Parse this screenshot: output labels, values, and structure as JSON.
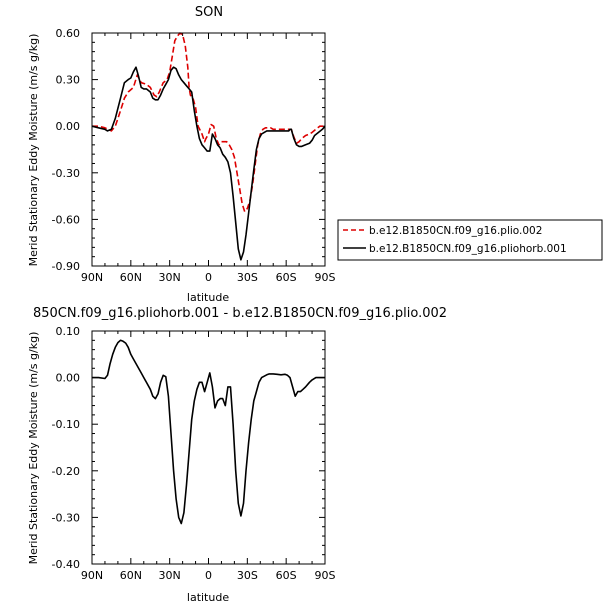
{
  "chart_data": [
    {
      "type": "line",
      "title": "SON",
      "xlabel": "latitude",
      "ylabel": "Merid Stationary Eddy Moisture (m/s g/kg)",
      "x_ticks": [
        -90,
        -60,
        -30,
        0,
        30,
        60,
        90
      ],
      "x_tick_labels": [
        "90N",
        "60N",
        "30N",
        "0",
        "30S",
        "60S",
        "90S"
      ],
      "xlim": [
        -90,
        90
      ],
      "y_ticks": [
        -0.9,
        -0.6,
        -0.3,
        0.0,
        0.3,
        0.6
      ],
      "y_tick_labels": [
        "-0.90",
        "-0.60",
        "-0.30",
        "0.00",
        "0.30",
        "0.60"
      ],
      "ylim": [
        -0.9,
        0.6
      ],
      "grid": false,
      "legend_position": "right",
      "series": [
        {
          "name": "b.e12.B1850CN.f09_g16.plio.002",
          "color": "#dd0000",
          "dash": "dashed",
          "x": [
            -90,
            -85,
            -80,
            -75,
            -72,
            -68,
            -65,
            -62,
            -58,
            -55,
            -52,
            -48,
            -45,
            -42,
            -40,
            -38,
            -35,
            -32,
            -30,
            -28,
            -26,
            -24,
            -22,
            -20,
            -18,
            -16,
            -15,
            -14,
            -12,
            -10,
            -8,
            -5,
            -3,
            -2,
            0,
            2,
            4,
            6,
            8,
            10,
            12,
            14,
            16,
            18,
            20,
            22,
            24,
            26,
            28,
            30,
            32,
            34,
            36,
            38,
            40,
            42,
            44,
            46,
            48,
            50,
            52,
            55,
            58,
            60,
            62,
            64,
            66,
            68,
            70,
            72,
            75,
            78,
            80,
            83,
            86,
            90
          ],
          "y": [
            0,
            0,
            -0.01,
            -0.03,
            0,
            0.1,
            0.18,
            0.22,
            0.25,
            0.33,
            0.28,
            0.27,
            0.25,
            0.2,
            0.19,
            0.22,
            0.28,
            0.3,
            0.35,
            0.45,
            0.55,
            0.58,
            0.6,
            0.59,
            0.52,
            0.38,
            0.25,
            0.2,
            0.18,
            0.12,
            0,
            -0.05,
            -0.1,
            -0.08,
            -0.05,
            0.01,
            0,
            -0.08,
            -0.12,
            -0.1,
            -0.1,
            -0.1,
            -0.12,
            -0.15,
            -0.2,
            -0.3,
            -0.4,
            -0.5,
            -0.55,
            -0.53,
            -0.48,
            -0.38,
            -0.25,
            -0.12,
            -0.05,
            -0.02,
            -0.01,
            -0.01,
            -0.01,
            -0.02,
            -0.02,
            -0.02,
            -0.02,
            -0.02,
            -0.02,
            -0.02,
            -0.07,
            -0.11,
            -0.1,
            -0.08,
            -0.06,
            -0.05,
            -0.04,
            -0.02,
            0,
            0
          ]
        },
        {
          "name": "b.e12.B1850CN.f09_g16.pliohorb.001",
          "color": "#000000",
          "dash": "solid",
          "x": [
            -90,
            -85,
            -80,
            -78,
            -75,
            -72,
            -68,
            -65,
            -62,
            -60,
            -58,
            -56,
            -54,
            -52,
            -50,
            -48,
            -45,
            -43,
            -41,
            -39,
            -37,
            -35,
            -33,
            -31,
            -29,
            -27,
            -25,
            -23,
            -21,
            -19,
            -17,
            -15,
            -13,
            -11,
            -9,
            -7,
            -5,
            -3,
            -1,
            1,
            3,
            5,
            7,
            9,
            11,
            13,
            15,
            17,
            19,
            21,
            23,
            25,
            27,
            29,
            31,
            33,
            35,
            37,
            39,
            41,
            43,
            45,
            47,
            50,
            55,
            60,
            62,
            63,
            64,
            65,
            66,
            68,
            70,
            72,
            75,
            78,
            80,
            82,
            85,
            88,
            90
          ],
          "y": [
            0,
            -0.01,
            -0.02,
            -0.03,
            -0.02,
            0.05,
            0.18,
            0.28,
            0.3,
            0.31,
            0.35,
            0.38,
            0.32,
            0.25,
            0.24,
            0.24,
            0.22,
            0.18,
            0.17,
            0.17,
            0.2,
            0.24,
            0.27,
            0.3,
            0.36,
            0.38,
            0.37,
            0.33,
            0.3,
            0.28,
            0.26,
            0.24,
            0.22,
            0.1,
            0,
            -0.08,
            -0.12,
            -0.14,
            -0.16,
            -0.16,
            -0.05,
            -0.08,
            -0.12,
            -0.14,
            -0.18,
            -0.2,
            -0.23,
            -0.3,
            -0.45,
            -0.62,
            -0.79,
            -0.86,
            -0.81,
            -0.7,
            -0.56,
            -0.42,
            -0.28,
            -0.15,
            -0.08,
            -0.05,
            -0.04,
            -0.03,
            -0.03,
            -0.03,
            -0.03,
            -0.03,
            -0.03,
            -0.02,
            -0.02,
            -0.05,
            -0.08,
            -0.12,
            -0.13,
            -0.13,
            -0.12,
            -0.11,
            -0.09,
            -0.06,
            -0.04,
            -0.02,
            0
          ]
        }
      ]
    },
    {
      "type": "line",
      "title": "850CN.f09_g16.pliohorb.001 - b.e12.B1850CN.f09_g16.plio.002",
      "xlabel": "latitude",
      "ylabel": "Merid Stationary Eddy Moisture (m/s g/kg)",
      "x_ticks": [
        -90,
        -60,
        -30,
        0,
        30,
        60,
        90
      ],
      "x_tick_labels": [
        "90N",
        "60N",
        "30N",
        "0",
        "30S",
        "60S",
        "90S"
      ],
      "xlim": [
        -90,
        90
      ],
      "y_ticks": [
        -0.4,
        -0.3,
        -0.2,
        -0.1,
        0.0,
        0.1
      ],
      "y_tick_labels": [
        "-0.40",
        "-0.30",
        "-0.20",
        "-0.10",
        "0.00",
        "0.10"
      ],
      "ylim": [
        -0.4,
        0.1
      ],
      "grid": false,
      "series": [
        {
          "color": "#000000",
          "dash": "solid",
          "x": [
            -90,
            -85,
            -80,
            -78,
            -76,
            -74,
            -72,
            -70,
            -68,
            -66,
            -64,
            -62,
            -60,
            -58,
            -56,
            -54,
            -52,
            -50,
            -48,
            -45,
            -43,
            -41,
            -39,
            -37,
            -35,
            -33,
            -31,
            -29,
            -27,
            -25,
            -23,
            -21,
            -19,
            -17,
            -15,
            -13,
            -11,
            -9,
            -7,
            -5,
            -3,
            -1,
            1,
            3,
            5,
            7,
            9,
            11,
            13,
            15,
            17,
            19,
            21,
            23,
            25,
            27,
            29,
            31,
            33,
            35,
            37,
            39,
            41,
            43,
            45,
            47,
            50,
            53,
            56,
            59,
            61,
            63,
            65,
            67,
            69,
            71,
            73,
            75,
            78,
            80,
            83,
            86,
            90
          ],
          "y": [
            0,
            0,
            -0.002,
            0.005,
            0.03,
            0.05,
            0.065,
            0.075,
            0.08,
            0.078,
            0.074,
            0.065,
            0.05,
            0.04,
            0.03,
            0.02,
            0.01,
            0,
            -0.01,
            -0.025,
            -0.04,
            -0.045,
            -0.035,
            -0.01,
            0.005,
            0.002,
            -0.04,
            -0.12,
            -0.2,
            -0.26,
            -0.3,
            -0.313,
            -0.29,
            -0.23,
            -0.16,
            -0.09,
            -0.05,
            -0.025,
            -0.01,
            -0.01,
            -0.03,
            -0.01,
            0.01,
            -0.02,
            -0.065,
            -0.05,
            -0.045,
            -0.045,
            -0.06,
            -0.02,
            -0.02,
            -0.1,
            -0.2,
            -0.27,
            -0.297,
            -0.27,
            -0.2,
            -0.14,
            -0.09,
            -0.05,
            -0.03,
            -0.01,
            0,
            0.003,
            0.006,
            0.008,
            0.008,
            0.007,
            0.006,
            0.007,
            0.005,
            0,
            -0.02,
            -0.04,
            -0.03,
            -0.03,
            -0.025,
            -0.02,
            -0.01,
            -0.005,
            0,
            0,
            0
          ]
        }
      ]
    }
  ]
}
